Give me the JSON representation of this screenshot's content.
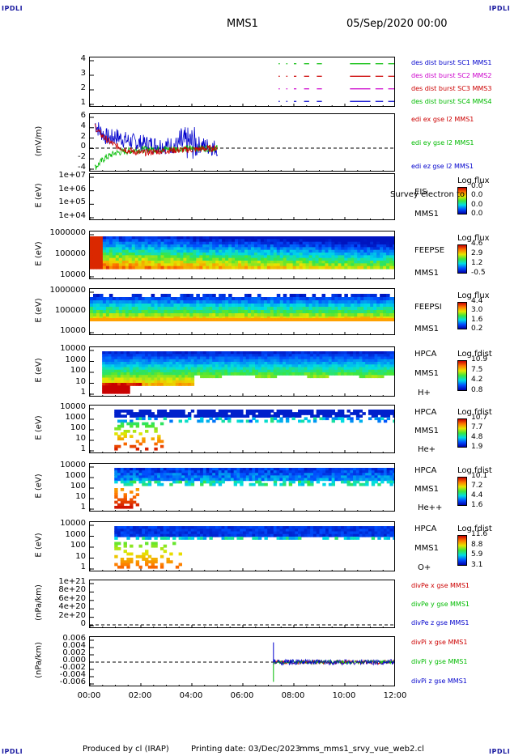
{
  "corners": {
    "tl": "IPDLI",
    "tr": "IPDLI",
    "bl": "IPDLI",
    "br": "IPDLI"
  },
  "header": {
    "mission": "MMS1",
    "date": "05/Sep/2020 00:00"
  },
  "footer": {
    "producer": "Produced by cl (IRAP)",
    "printing": "Printing date: 03/Dec/2023",
    "file": "mms_mms1_srvy_vue_web2.cl"
  },
  "colors": {
    "red": "#cc0000",
    "green": "#00bb00",
    "blue": "#0000cc",
    "magenta": "#cc00cc"
  },
  "chart_data": [
    {
      "type": "line",
      "id": "burst",
      "ylabel": "",
      "yticks": [
        "4",
        "3",
        "2",
        "1"
      ],
      "ylim": [
        0.5,
        4.5
      ],
      "legend": [
        {
          "name": "des dist burst SC1 MMS1",
          "color": "#0000cc"
        },
        {
          "name": "des dist burst SC2 MMS2",
          "color": "#cc00cc"
        },
        {
          "name": "des dist burst SC3 MMS3",
          "color": "#cc0000"
        },
        {
          "name": "des dist burst SC4 MMS4",
          "color": "#00bb00"
        }
      ],
      "series": [
        {
          "level": 4,
          "color": "#00bb00",
          "segments": [
            [
              7.4,
              7.45
            ],
            [
              7.7,
              7.75
            ],
            [
              8.0,
              8.1
            ],
            [
              8.4,
              8.6
            ],
            [
              8.9,
              9.1
            ],
            [
              10.2,
              11.0
            ],
            [
              11.2,
              11.5
            ],
            [
              11.7,
              12.0
            ]
          ]
        },
        {
          "level": 3,
          "color": "#cc0000",
          "segments": [
            [
              7.4,
              7.45
            ],
            [
              7.7,
              7.75
            ],
            [
              8.0,
              8.1
            ],
            [
              8.4,
              8.6
            ],
            [
              8.9,
              9.1
            ],
            [
              10.2,
              11.0
            ],
            [
              11.2,
              11.5
            ],
            [
              11.7,
              12.0
            ]
          ]
        },
        {
          "level": 2,
          "color": "#cc00cc",
          "segments": [
            [
              7.4,
              7.45
            ],
            [
              7.7,
              7.75
            ],
            [
              8.0,
              8.1
            ],
            [
              8.4,
              8.6
            ],
            [
              8.9,
              9.1
            ],
            [
              10.2,
              11.0
            ],
            [
              11.2,
              11.5
            ],
            [
              11.7,
              12.0
            ]
          ]
        },
        {
          "level": 1,
          "color": "#0000cc",
          "segments": [
            [
              7.4,
              7.45
            ],
            [
              7.7,
              7.75
            ],
            [
              8.0,
              8.1
            ],
            [
              8.4,
              8.6
            ],
            [
              8.9,
              9.1
            ],
            [
              10.2,
              11.0
            ],
            [
              11.2,
              11.5
            ],
            [
              11.7,
              12.0
            ]
          ]
        }
      ]
    },
    {
      "type": "line",
      "id": "edi",
      "ylabel": "(mV/m)",
      "yticks": [
        "6",
        "4",
        "2",
        "0",
        "-2",
        "-4"
      ],
      "ylim": [
        -5,
        7
      ],
      "legend": [
        {
          "name": "edi ex gse l2 MMS1",
          "color": "#cc0000"
        },
        {
          "name": "edi ey gse l2 MMS1",
          "color": "#00bb00"
        },
        {
          "name": "edi ez gse l2 MMS1",
          "color": "#0000cc"
        }
      ],
      "series": [
        {
          "name": "x",
          "color": "#cc0000",
          "x": [
            0.2,
            0.4,
            0.6,
            0.8,
            1.0,
            1.5,
            2.0,
            3.0,
            4.0,
            5.0
          ],
          "y": [
            4.5,
            3,
            2,
            1.2,
            0.5,
            -0.5,
            -1,
            -0.5,
            -0.3,
            0
          ]
        },
        {
          "name": "y",
          "color": "#00bb00",
          "x": [
            0.2,
            0.4,
            0.6,
            0.8,
            1.0,
            1.5,
            2.0,
            3.0,
            4.0,
            5.0
          ],
          "y": [
            -4,
            -3,
            -2,
            -1.5,
            -1,
            -0.6,
            -0.3,
            -0.2,
            -0.1,
            0
          ]
        },
        {
          "name": "z",
          "color": "#0000cc",
          "x": [
            0.2,
            0.4,
            0.6,
            0.8,
            1.0,
            1.5,
            2.0,
            3.0,
            4.0,
            5.0
          ],
          "y": [
            5,
            3.5,
            2.5,
            2,
            2.5,
            1.5,
            1,
            0.5,
            1,
            0
          ]
        }
      ]
    },
    {
      "type": "heatmap",
      "id": "eis",
      "ylabel": "E (eV)",
      "yticks": [
        "1e+07",
        "1e+06",
        "1e+05",
        "1e+04"
      ],
      "instrument": [
        "EIS",
        "MMS1"
      ],
      "overlay": "Survey electron to",
      "cbar_title": "Log flux",
      "cbar_ticks": [
        "0.0",
        "0.0",
        "0.0",
        "0.0"
      ]
    },
    {
      "type": "heatmap",
      "id": "feepse",
      "ylabel": "E (eV)",
      "yticks": [
        "1000000",
        "100000",
        "10000"
      ],
      "instrument": [
        "FEEPSE",
        "MMS1"
      ],
      "cbar_title": "Log flux",
      "cbar_ticks": [
        "4.6",
        "2.9",
        "1.2",
        "-0.5"
      ]
    },
    {
      "type": "heatmap",
      "id": "feepsi",
      "ylabel": "E (eV)",
      "yticks": [
        "1000000",
        "100000",
        "10000"
      ],
      "instrument": [
        "FEEPSI",
        "MMS1"
      ],
      "cbar_title": "Log flux",
      "cbar_ticks": [
        "4.4",
        "3.0",
        "1.6",
        "0.2"
      ]
    },
    {
      "type": "heatmap",
      "id": "hpca_h",
      "ylabel": "E (eV)",
      "yticks": [
        "10000",
        "1000",
        "100",
        "10",
        "1"
      ],
      "instrument": [
        "HPCA",
        "MMS1",
        "H+"
      ],
      "cbar_title": "Log fdist",
      "cbar_ticks": [
        "10.9",
        "7.5",
        "4.2",
        "0.8"
      ]
    },
    {
      "type": "heatmap",
      "id": "hpca_he",
      "ylabel": "E (eV)",
      "yticks": [
        "10000",
        "1000",
        "100",
        "10",
        "1"
      ],
      "instrument": [
        "HPCA",
        "MMS1",
        "He+"
      ],
      "cbar_title": "Log fdist",
      "cbar_ticks": [
        "10.7",
        "7.7",
        "4.8",
        "1.9"
      ]
    },
    {
      "type": "heatmap",
      "id": "hpca_hepp",
      "ylabel": "E (eV)",
      "yticks": [
        "10000",
        "1000",
        "100",
        "10",
        "1"
      ],
      "instrument": [
        "HPCA",
        "MMS1",
        "He++"
      ],
      "cbar_title": "Log fdist",
      "cbar_ticks": [
        "10.1",
        "7.2",
        "4.4",
        "1.6"
      ]
    },
    {
      "type": "heatmap",
      "id": "hpca_o",
      "ylabel": "E (eV)",
      "yticks": [
        "10000",
        "1000",
        "100",
        "10",
        "1"
      ],
      "instrument": [
        "HPCA",
        "MMS1",
        "O+"
      ],
      "cbar_title": "Log fdist",
      "cbar_ticks": [
        "11.6",
        "8.8",
        "5.9",
        "3.1"
      ]
    },
    {
      "type": "line",
      "id": "divpe",
      "ylabel": "(nPa/km)",
      "yticks": [
        "1e+21",
        "8e+20",
        "6e+20",
        "4e+20",
        "2e+20",
        "0"
      ],
      "ylim": [
        -1e+20,
        1.1e+21
      ],
      "legend": [
        {
          "name": "divPe x gse MMS1",
          "color": "#cc0000"
        },
        {
          "name": "divPe y gse MMS1",
          "color": "#00bb00"
        },
        {
          "name": "divPe z gse MMS1",
          "color": "#0000cc"
        }
      ]
    },
    {
      "type": "line",
      "id": "divpi",
      "ylabel": "(nPa/km)",
      "yticks": [
        "0.006",
        "0.004",
        "0.002",
        "0.000",
        "-0.002",
        "-0.004",
        "-0.006"
      ],
      "ylim": [
        -0.007,
        0.007
      ],
      "legend": [
        {
          "name": "divPi x gse MMS1",
          "color": "#cc0000"
        },
        {
          "name": "divPi y gse MMS1",
          "color": "#00bb00"
        },
        {
          "name": "divPi z gse MMS1",
          "color": "#0000cc"
        }
      ],
      "spike": {
        "x": 7.2,
        "ymin": -0.0055,
        "ymax": 0.0055
      },
      "noise": {
        "x_start": 7.2,
        "x_end": 12.0,
        "amplitude": 0.0008
      }
    }
  ],
  "xaxis": {
    "ticks": [
      "00:00",
      "02:00",
      "04:00",
      "06:00",
      "08:00",
      "10:00",
      "12:00"
    ],
    "xlim": [
      0,
      12
    ]
  }
}
